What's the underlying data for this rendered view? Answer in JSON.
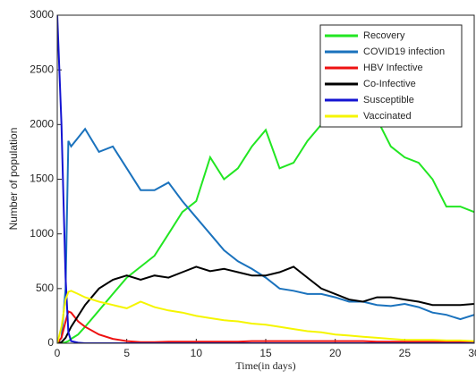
{
  "chart_data": {
    "type": "line",
    "x_label": "Time(in days)",
    "y_label": "Number of population",
    "x": [
      0,
      0.3,
      0.6,
      0.8,
      1,
      1.5,
      2,
      3,
      4,
      5,
      6,
      7,
      8,
      9,
      10,
      11,
      12,
      13,
      14,
      15,
      16,
      17,
      18,
      19,
      20,
      21,
      22,
      23,
      24,
      25,
      26,
      27,
      28,
      29,
      30
    ],
    "series": [
      {
        "name": "Recovery",
        "color": "#22e622",
        "values": [
          0,
          0,
          10,
          20,
          40,
          80,
          150,
          300,
          450,
          600,
          700,
          800,
          1000,
          1200,
          1300,
          1700,
          1500,
          1600,
          1800,
          1950,
          1600,
          1650,
          1850,
          2000,
          2050,
          2050,
          2100,
          2050,
          1800,
          1700,
          1650,
          1500,
          1250,
          1250,
          1200
        ]
      },
      {
        "name": "COVID19 infection",
        "color": "#1a72bd",
        "values": [
          0,
          50,
          500,
          1850,
          1800,
          1880,
          1960,
          1750,
          1800,
          1600,
          1400,
          1400,
          1470,
          1300,
          1150,
          1000,
          850,
          750,
          680,
          600,
          500,
          480,
          450,
          450,
          420,
          380,
          380,
          350,
          340,
          360,
          330,
          280,
          260,
          220,
          260
        ]
      },
      {
        "name": "HBV Infective",
        "color": "#ee1111",
        "values": [
          0,
          50,
          200,
          290,
          280,
          200,
          150,
          80,
          40,
          20,
          10,
          10,
          15,
          15,
          15,
          15,
          15,
          15,
          20,
          20,
          20,
          20,
          20,
          20,
          20,
          20,
          20,
          15,
          15,
          15,
          15,
          15,
          15,
          15,
          15
        ]
      },
      {
        "name": "Co-Infective",
        "color": "#000000",
        "values": [
          0,
          10,
          50,
          100,
          150,
          250,
          350,
          500,
          580,
          620,
          580,
          620,
          600,
          650,
          700,
          660,
          680,
          650,
          620,
          620,
          650,
          700,
          600,
          500,
          450,
          400,
          380,
          420,
          420,
          400,
          380,
          350,
          350,
          350,
          360
        ]
      },
      {
        "name": "Susceptible",
        "color": "#1414d2",
        "values": [
          3000,
          2000,
          600,
          100,
          20,
          5,
          0,
          0,
          0,
          0,
          0,
          0,
          0,
          0,
          0,
          0,
          0,
          0,
          0,
          0,
          0,
          0,
          0,
          0,
          0,
          0,
          0,
          0,
          0,
          0,
          0,
          0,
          0,
          0,
          0
        ]
      },
      {
        "name": "Vaccinated",
        "color": "#f5f500",
        "values": [
          0,
          150,
          400,
          470,
          480,
          450,
          420,
          380,
          350,
          320,
          380,
          330,
          300,
          280,
          250,
          230,
          210,
          200,
          180,
          170,
          150,
          130,
          110,
          100,
          80,
          70,
          60,
          50,
          40,
          30,
          30,
          30,
          25,
          25,
          20
        ]
      }
    ],
    "xlim": [
      0,
      30
    ],
    "ylim": [
      0,
      3000
    ],
    "xticks": [
      0,
      5,
      10,
      15,
      20,
      25,
      30
    ],
    "yticks": [
      0,
      500,
      1000,
      1500,
      2000,
      2500,
      3000
    ],
    "legend": "northeast"
  }
}
